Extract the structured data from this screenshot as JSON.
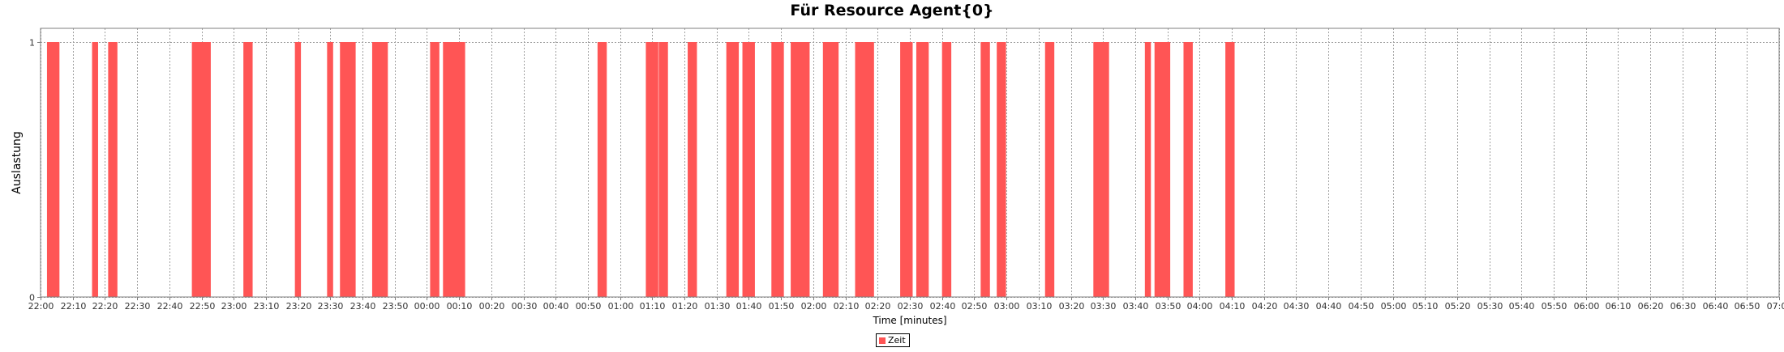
{
  "chart_data": {
    "type": "bar",
    "title": "Für Resource Agent{0}",
    "xlabel": "Time [minutes]",
    "ylabel": "Auslastung",
    "x_range": [
      "22:00",
      "07:00"
    ],
    "ylim": [
      0,
      1
    ],
    "y_ticks": [
      "0",
      "1"
    ],
    "x_ticks": [
      "22:00",
      "22:10",
      "22:20",
      "22:30",
      "22:40",
      "22:50",
      "23:00",
      "23:10",
      "23:20",
      "23:30",
      "23:40",
      "23:50",
      "00:00",
      "00:10",
      "00:20",
      "00:30",
      "00:40",
      "00:50",
      "01:00",
      "01:10",
      "01:20",
      "01:30",
      "01:40",
      "01:50",
      "02:00",
      "02:10",
      "02:20",
      "02:30",
      "02:40",
      "02:50",
      "03:00",
      "03:10",
      "03:20",
      "03:30",
      "03:40",
      "03:50",
      "04:00",
      "04:10",
      "04:20",
      "04:30",
      "04:40",
      "04:50",
      "05:00",
      "05:10",
      "05:20",
      "05:30",
      "05:40",
      "05:50",
      "06:00",
      "06:10",
      "06:20",
      "06:30",
      "06:40",
      "06:50",
      "07:00"
    ],
    "grid": true,
    "legend_position": "bottom-center",
    "series": [
      {
        "name": "Zeit",
        "color": "#ff5555",
        "intervals": [
          {
            "start": "22:02",
            "end": "22:06",
            "value": 1
          },
          {
            "start": "22:16",
            "end": "22:18",
            "value": 1
          },
          {
            "start": "22:21",
            "end": "22:24",
            "value": 1
          },
          {
            "start": "22:47",
            "end": "22:53",
            "value": 1
          },
          {
            "start": "23:03",
            "end": "23:06",
            "value": 1
          },
          {
            "start": "23:19",
            "end": "23:21",
            "value": 1
          },
          {
            "start": "23:29",
            "end": "23:31",
            "value": 1
          },
          {
            "start": "23:33",
            "end": "23:38",
            "value": 1
          },
          {
            "start": "23:43",
            "end": "23:48",
            "value": 1
          },
          {
            "start": "00:01",
            "end": "00:04",
            "value": 1
          },
          {
            "start": "00:05",
            "end": "00:12",
            "value": 1
          },
          {
            "start": "00:53",
            "end": "00:56",
            "value": 1
          },
          {
            "start": "01:08",
            "end": "01:12",
            "value": 1
          },
          {
            "start": "01:12",
            "end": "01:15",
            "value": 1
          },
          {
            "start": "01:21",
            "end": "01:24",
            "value": 1
          },
          {
            "start": "01:33",
            "end": "01:37",
            "value": 1
          },
          {
            "start": "01:38",
            "end": "01:42",
            "value": 1
          },
          {
            "start": "01:47",
            "end": "01:51",
            "value": 1
          },
          {
            "start": "01:53",
            "end": "01:59",
            "value": 1
          },
          {
            "start": "02:03",
            "end": "02:08",
            "value": 1
          },
          {
            "start": "02:13",
            "end": "02:19",
            "value": 1
          },
          {
            "start": "02:27",
            "end": "02:31",
            "value": 1
          },
          {
            "start": "02:32",
            "end": "02:36",
            "value": 1
          },
          {
            "start": "02:40",
            "end": "02:43",
            "value": 1
          },
          {
            "start": "02:52",
            "end": "02:55",
            "value": 1
          },
          {
            "start": "02:57",
            "end": "03:00",
            "value": 1
          },
          {
            "start": "03:12",
            "end": "03:15",
            "value": 1
          },
          {
            "start": "03:27",
            "end": "03:32",
            "value": 1
          },
          {
            "start": "03:43",
            "end": "03:45",
            "value": 1
          },
          {
            "start": "03:46",
            "end": "03:51",
            "value": 1
          },
          {
            "start": "03:55",
            "end": "03:58",
            "value": 1
          },
          {
            "start": "04:08",
            "end": "04:11",
            "value": 1
          }
        ]
      }
    ]
  }
}
